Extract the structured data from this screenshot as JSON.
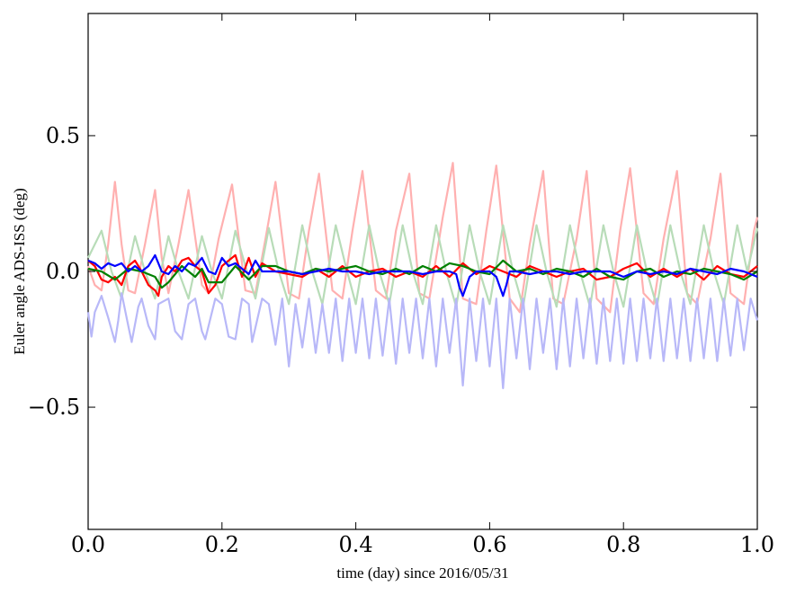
{
  "chart_data": {
    "type": "line",
    "xlabel": "time (day) since 2016/05/31",
    "ylabel": "Euler angle ADS-ISS (deg)",
    "xlim": [
      0.0,
      1.0
    ],
    "ylim": [
      -0.95,
      0.95
    ],
    "xticks": [
      {
        "value": 0.0,
        "label": "0.0"
      },
      {
        "value": 0.2,
        "label": "0.2"
      },
      {
        "value": 0.4,
        "label": "0.4"
      },
      {
        "value": 0.6,
        "label": "0.6"
      },
      {
        "value": 0.8,
        "label": "0.8"
      },
      {
        "value": 1.0,
        "label": "1.0"
      }
    ],
    "yticks": [
      {
        "value": 0.5,
        "label": "0.5"
      },
      {
        "value": 0.0,
        "label": "0.0"
      },
      {
        "value": -0.5,
        "label": "−0.5"
      }
    ],
    "grid": false,
    "series": [
      {
        "color": "#ffb0b0",
        "x": [
          0.0,
          0.01,
          0.02,
          0.03,
          0.04,
          0.05,
          0.06,
          0.07,
          0.085,
          0.1,
          0.11,
          0.12,
          0.135,
          0.15,
          0.17,
          0.18,
          0.195,
          0.215,
          0.235,
          0.25,
          0.265,
          0.28,
          0.3,
          0.315,
          0.33,
          0.345,
          0.365,
          0.38,
          0.395,
          0.41,
          0.43,
          0.445,
          0.46,
          0.48,
          0.495,
          0.51,
          0.53,
          0.545,
          0.56,
          0.58,
          0.595,
          0.61,
          0.63,
          0.645,
          0.66,
          0.68,
          0.695,
          0.71,
          0.73,
          0.745,
          0.76,
          0.78,
          0.795,
          0.81,
          0.83,
          0.845,
          0.86,
          0.88,
          0.895,
          0.91,
          0.93,
          0.945,
          0.96,
          0.98,
          0.995,
          1.0
        ],
        "y": [
          0.02,
          -0.05,
          -0.07,
          0.1,
          0.33,
          0.1,
          -0.07,
          -0.08,
          0.1,
          0.3,
          0.05,
          -0.08,
          0.1,
          0.3,
          -0.05,
          -0.08,
          0.12,
          0.32,
          -0.07,
          -0.08,
          0.12,
          0.33,
          -0.08,
          -0.1,
          0.15,
          0.36,
          -0.07,
          -0.1,
          0.15,
          0.37,
          -0.07,
          -0.1,
          0.15,
          0.36,
          -0.08,
          -0.1,
          0.2,
          0.4,
          -0.1,
          -0.12,
          0.15,
          0.39,
          -0.1,
          -0.15,
          0.1,
          0.37,
          -0.1,
          -0.12,
          0.12,
          0.37,
          -0.1,
          -0.15,
          0.15,
          0.38,
          -0.08,
          -0.12,
          0.12,
          0.37,
          -0.08,
          -0.12,
          0.12,
          0.36,
          -0.08,
          -0.12,
          0.15,
          0.2
        ]
      },
      {
        "color": "#b8dcb8",
        "x": [
          0.0,
          0.02,
          0.035,
          0.05,
          0.07,
          0.085,
          0.1,
          0.12,
          0.135,
          0.15,
          0.17,
          0.185,
          0.2,
          0.22,
          0.235,
          0.25,
          0.27,
          0.285,
          0.3,
          0.32,
          0.335,
          0.35,
          0.37,
          0.385,
          0.4,
          0.42,
          0.435,
          0.45,
          0.47,
          0.485,
          0.5,
          0.52,
          0.535,
          0.55,
          0.57,
          0.585,
          0.6,
          0.62,
          0.635,
          0.65,
          0.67,
          0.685,
          0.7,
          0.72,
          0.735,
          0.75,
          0.77,
          0.785,
          0.8,
          0.82,
          0.835,
          0.85,
          0.87,
          0.885,
          0.9,
          0.92,
          0.935,
          0.95,
          0.97,
          0.985,
          1.0
        ],
        "y": [
          0.05,
          0.15,
          0.0,
          -0.1,
          0.13,
          0.0,
          -0.1,
          0.13,
          0.0,
          -0.1,
          0.13,
          0.0,
          -0.1,
          0.15,
          0.02,
          -0.1,
          0.16,
          0.0,
          -0.12,
          0.17,
          0.0,
          -0.12,
          0.17,
          0.02,
          -0.12,
          0.17,
          0.0,
          -0.12,
          0.17,
          0.0,
          -0.12,
          0.17,
          0.0,
          -0.13,
          0.17,
          0.0,
          -0.12,
          0.17,
          0.0,
          -0.13,
          0.17,
          0.0,
          -0.13,
          0.17,
          0.0,
          -0.13,
          0.17,
          0.0,
          -0.13,
          0.17,
          0.0,
          -0.13,
          0.17,
          0.0,
          -0.12,
          0.17,
          0.0,
          -0.12,
          0.17,
          0.0,
          0.16
        ]
      },
      {
        "color": "#b8b8f8",
        "x": [
          0.0,
          0.005,
          0.01,
          0.02,
          0.03,
          0.04,
          0.045,
          0.05,
          0.06,
          0.065,
          0.075,
          0.08,
          0.09,
          0.1,
          0.105,
          0.12,
          0.13,
          0.14,
          0.15,
          0.16,
          0.17,
          0.175,
          0.19,
          0.2,
          0.21,
          0.22,
          0.23,
          0.24,
          0.245,
          0.26,
          0.27,
          0.28,
          0.29,
          0.3,
          0.31,
          0.32,
          0.33,
          0.34,
          0.35,
          0.36,
          0.37,
          0.38,
          0.39,
          0.4,
          0.41,
          0.42,
          0.43,
          0.44,
          0.45,
          0.46,
          0.47,
          0.48,
          0.49,
          0.5,
          0.51,
          0.52,
          0.53,
          0.54,
          0.55,
          0.56,
          0.57,
          0.58,
          0.59,
          0.6,
          0.61,
          0.62,
          0.63,
          0.64,
          0.65,
          0.66,
          0.67,
          0.68,
          0.69,
          0.7,
          0.71,
          0.72,
          0.73,
          0.74,
          0.75,
          0.76,
          0.77,
          0.78,
          0.79,
          0.8,
          0.81,
          0.82,
          0.83,
          0.84,
          0.85,
          0.86,
          0.87,
          0.88,
          0.89,
          0.9,
          0.91,
          0.92,
          0.93,
          0.94,
          0.95,
          0.96,
          0.97,
          0.98,
          0.99,
          1.0
        ],
        "y": [
          -0.15,
          -0.24,
          -0.15,
          -0.09,
          -0.17,
          -0.26,
          -0.18,
          -0.08,
          -0.2,
          -0.26,
          -0.13,
          -0.1,
          -0.2,
          -0.25,
          -0.12,
          -0.1,
          -0.22,
          -0.25,
          -0.12,
          -0.1,
          -0.22,
          -0.25,
          -0.1,
          -0.12,
          -0.24,
          -0.25,
          -0.1,
          -0.12,
          -0.26,
          -0.1,
          -0.12,
          -0.27,
          -0.1,
          -0.35,
          -0.12,
          -0.28,
          -0.1,
          -0.3,
          -0.12,
          -0.3,
          -0.1,
          -0.33,
          -0.1,
          -0.3,
          -0.1,
          -0.32,
          -0.1,
          -0.31,
          -0.1,
          -0.34,
          -0.1,
          -0.3,
          -0.1,
          -0.32,
          -0.1,
          -0.35,
          -0.1,
          -0.3,
          -0.1,
          -0.42,
          -0.1,
          -0.33,
          -0.1,
          -0.35,
          -0.1,
          -0.43,
          -0.1,
          -0.32,
          -0.1,
          -0.36,
          -0.1,
          -0.3,
          -0.1,
          -0.36,
          -0.1,
          -0.35,
          -0.1,
          -0.32,
          -0.1,
          -0.34,
          -0.1,
          -0.33,
          -0.1,
          -0.34,
          -0.1,
          -0.33,
          -0.1,
          -0.32,
          -0.1,
          -0.33,
          -0.1,
          -0.32,
          -0.1,
          -0.33,
          -0.1,
          -0.32,
          -0.1,
          -0.33,
          -0.1,
          -0.31,
          -0.1,
          -0.29,
          -0.1,
          -0.18
        ]
      },
      {
        "color": "#ff0000",
        "x": [
          0.0,
          0.01,
          0.02,
          0.03,
          0.04,
          0.05,
          0.06,
          0.07,
          0.08,
          0.09,
          0.1,
          0.105,
          0.11,
          0.12,
          0.13,
          0.14,
          0.15,
          0.16,
          0.17,
          0.18,
          0.19,
          0.2,
          0.21,
          0.22,
          0.23,
          0.24,
          0.25,
          0.26,
          0.28,
          0.3,
          0.32,
          0.34,
          0.36,
          0.38,
          0.4,
          0.42,
          0.44,
          0.46,
          0.48,
          0.5,
          0.52,
          0.54,
          0.56,
          0.58,
          0.6,
          0.62,
          0.64,
          0.66,
          0.68,
          0.7,
          0.72,
          0.74,
          0.76,
          0.78,
          0.8,
          0.82,
          0.84,
          0.86,
          0.88,
          0.9,
          0.92,
          0.94,
          0.96,
          0.98,
          1.0
        ],
        "y": [
          0.04,
          0.02,
          -0.03,
          -0.04,
          -0.02,
          -0.05,
          0.02,
          0.04,
          0.0,
          -0.05,
          -0.07,
          -0.09,
          -0.02,
          0.02,
          0.0,
          0.04,
          0.05,
          0.02,
          0.0,
          -0.08,
          -0.05,
          0.02,
          0.04,
          0.06,
          -0.02,
          0.05,
          -0.02,
          0.03,
          0.0,
          -0.01,
          -0.02,
          0.01,
          -0.02,
          0.02,
          -0.02,
          0.0,
          0.01,
          -0.02,
          0.0,
          -0.02,
          0.02,
          -0.02,
          0.03,
          -0.01,
          0.02,
          0.0,
          -0.02,
          0.02,
          0.0,
          -0.02,
          0.0,
          0.01,
          -0.03,
          -0.02,
          0.01,
          0.03,
          -0.02,
          0.01,
          -0.02,
          0.01,
          -0.03,
          0.02,
          -0.01,
          -0.02,
          0.02
        ]
      },
      {
        "color": "#008000",
        "x": [
          0.0,
          0.02,
          0.04,
          0.06,
          0.08,
          0.1,
          0.11,
          0.12,
          0.14,
          0.15,
          0.16,
          0.17,
          0.18,
          0.2,
          0.22,
          0.24,
          0.26,
          0.28,
          0.3,
          0.32,
          0.34,
          0.36,
          0.38,
          0.4,
          0.42,
          0.44,
          0.46,
          0.48,
          0.5,
          0.52,
          0.54,
          0.56,
          0.58,
          0.6,
          0.62,
          0.64,
          0.66,
          0.68,
          0.7,
          0.72,
          0.74,
          0.76,
          0.78,
          0.8,
          0.82,
          0.84,
          0.86,
          0.88,
          0.9,
          0.92,
          0.94,
          0.96,
          0.98,
          1.0
        ],
        "y": [
          0.01,
          0.0,
          -0.03,
          0.01,
          0.0,
          -0.02,
          -0.06,
          -0.04,
          0.02,
          0.0,
          -0.02,
          0.01,
          -0.04,
          -0.04,
          0.02,
          -0.03,
          0.02,
          0.02,
          0.0,
          -0.01,
          0.01,
          0.0,
          0.01,
          0.02,
          0.0,
          -0.01,
          0.01,
          -0.01,
          0.02,
          0.0,
          0.03,
          0.02,
          0.0,
          -0.01,
          0.04,
          0.0,
          0.01,
          -0.01,
          0.01,
          0.0,
          -0.02,
          0.01,
          -0.02,
          -0.03,
          0.0,
          0.01,
          -0.02,
          0.0,
          -0.01,
          0.01,
          0.0,
          -0.01,
          -0.03,
          0.0
        ]
      },
      {
        "color": "#0000ff",
        "x": [
          0.0,
          0.01,
          0.02,
          0.03,
          0.04,
          0.05,
          0.06,
          0.07,
          0.08,
          0.09,
          0.1,
          0.11,
          0.12,
          0.13,
          0.14,
          0.15,
          0.16,
          0.17,
          0.18,
          0.19,
          0.2,
          0.21,
          0.22,
          0.23,
          0.24,
          0.25,
          0.26,
          0.28,
          0.3,
          0.32,
          0.34,
          0.36,
          0.38,
          0.4,
          0.42,
          0.44,
          0.46,
          0.48,
          0.5,
          0.52,
          0.54,
          0.55,
          0.555,
          0.56,
          0.57,
          0.58,
          0.6,
          0.61,
          0.62,
          0.625,
          0.63,
          0.64,
          0.66,
          0.68,
          0.7,
          0.72,
          0.74,
          0.76,
          0.78,
          0.8,
          0.82,
          0.84,
          0.86,
          0.88,
          0.9,
          0.92,
          0.94,
          0.96,
          0.98,
          1.0
        ],
        "y": [
          0.04,
          0.03,
          0.01,
          0.03,
          0.02,
          0.03,
          0.0,
          0.02,
          0.0,
          0.02,
          0.06,
          0.0,
          -0.01,
          0.02,
          0.0,
          0.03,
          0.02,
          0.05,
          0.0,
          -0.01,
          0.05,
          0.02,
          0.03,
          0.01,
          -0.01,
          0.04,
          0.0,
          0.0,
          0.0,
          -0.01,
          0.0,
          0.01,
          0.0,
          0.0,
          -0.01,
          0.0,
          0.0,
          0.0,
          -0.01,
          0.0,
          0.0,
          -0.01,
          -0.06,
          -0.09,
          -0.02,
          0.0,
          0.0,
          -0.02,
          -0.09,
          -0.05,
          0.0,
          0.0,
          -0.01,
          0.0,
          0.0,
          -0.01,
          0.0,
          0.0,
          0.0,
          -0.02,
          0.0,
          -0.01,
          0.0,
          -0.01,
          0.01,
          0.0,
          -0.01,
          0.01,
          0.0,
          -0.02
        ]
      }
    ]
  }
}
